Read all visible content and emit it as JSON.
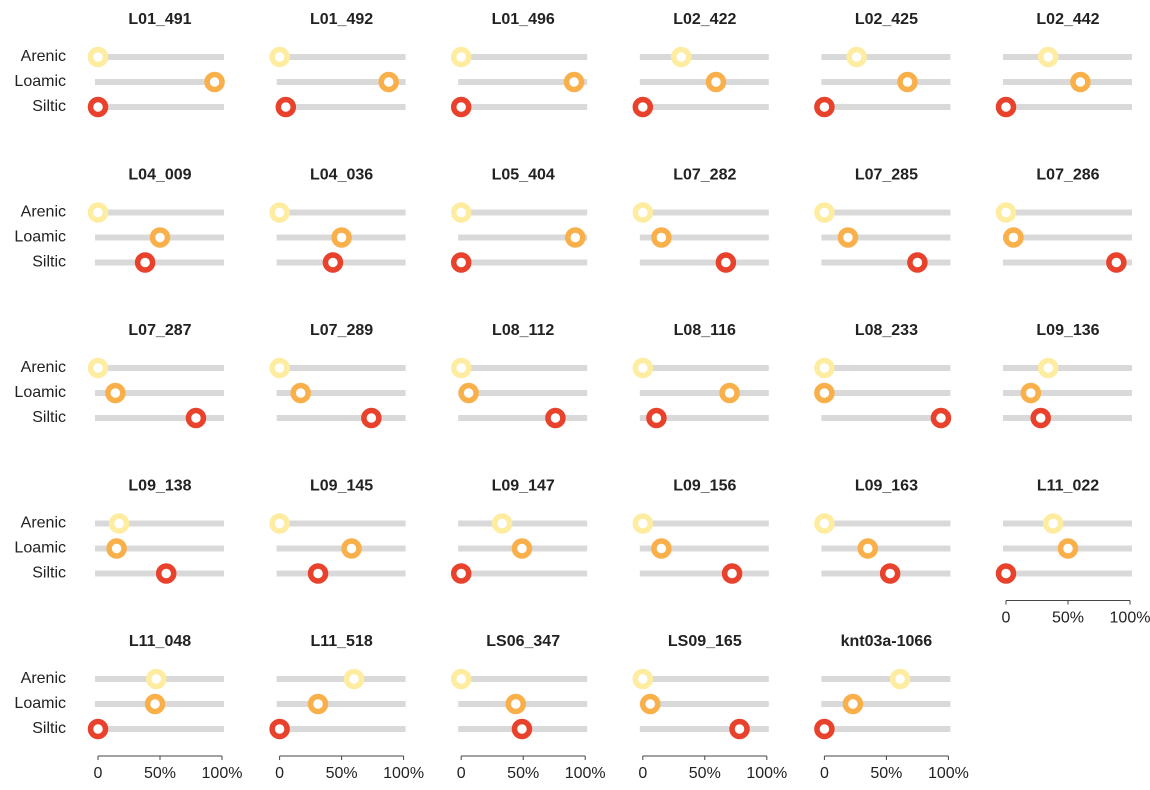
{
  "chart_data": {
    "type": "dot",
    "categories": [
      "Arenic",
      "Loamic",
      "Siltic"
    ],
    "colors": [
      "#feeda0",
      "#f9b04a",
      "#e8412c"
    ],
    "track_color": "#d9d9d9",
    "xlim": [
      0,
      100
    ],
    "xticks": [
      0,
      {
        "value": 50,
        "label": "50%"
      },
      {
        "value": 100,
        "label": "100%"
      }
    ],
    "panels": [
      {
        "title": "L01_491",
        "values": [
          0,
          94,
          0
        ]
      },
      {
        "title": "L01_492",
        "values": [
          0,
          88,
          5
        ]
      },
      {
        "title": "L01_496",
        "values": [
          0,
          91,
          0
        ]
      },
      {
        "title": "L02_422",
        "values": [
          31,
          59,
          0
        ]
      },
      {
        "title": "L02_425",
        "values": [
          26,
          67,
          0
        ]
      },
      {
        "title": "L02_442",
        "values": [
          34,
          60,
          0
        ]
      },
      {
        "title": "L04_009",
        "values": [
          0,
          50,
          38
        ]
      },
      {
        "title": "L04_036",
        "values": [
          0,
          50,
          43
        ]
      },
      {
        "title": "L05_404",
        "values": [
          0,
          92,
          0
        ]
      },
      {
        "title": "L07_282",
        "values": [
          0,
          15,
          67
        ]
      },
      {
        "title": "L07_285",
        "values": [
          0,
          19,
          75
        ]
      },
      {
        "title": "L07_286",
        "values": [
          0,
          6,
          89
        ]
      },
      {
        "title": "L07_287",
        "values": [
          0,
          14,
          79
        ]
      },
      {
        "title": "L07_289",
        "values": [
          0,
          17,
          74
        ]
      },
      {
        "title": "L08_112",
        "values": [
          0,
          6,
          76
        ]
      },
      {
        "title": "L08_116",
        "values": [
          0,
          70,
          11
        ]
      },
      {
        "title": "L08_233",
        "values": [
          0,
          0,
          94
        ]
      },
      {
        "title": "L09_136",
        "values": [
          34,
          20,
          28
        ]
      },
      {
        "title": "L09_138",
        "values": [
          17,
          15,
          55
        ]
      },
      {
        "title": "L09_145",
        "values": [
          0,
          58,
          31
        ]
      },
      {
        "title": "L09_147",
        "values": [
          33,
          49,
          0
        ]
      },
      {
        "title": "L09_156",
        "values": [
          0,
          15,
          72
        ]
      },
      {
        "title": "L09_163",
        "values": [
          0,
          35,
          53
        ]
      },
      {
        "title": "L11_022",
        "values": [
          38,
          50,
          0
        ]
      },
      {
        "title": "L11_048",
        "values": [
          47,
          46,
          0
        ]
      },
      {
        "title": "L11_518",
        "values": [
          60,
          31,
          0
        ]
      },
      {
        "title": "LS06_347",
        "values": [
          0,
          44,
          49
        ]
      },
      {
        "title": "LS09_165",
        "values": [
          0,
          6,
          78
        ]
      },
      {
        "title": "knt03a-1066",
        "values": [
          61,
          23,
          0
        ]
      }
    ]
  }
}
